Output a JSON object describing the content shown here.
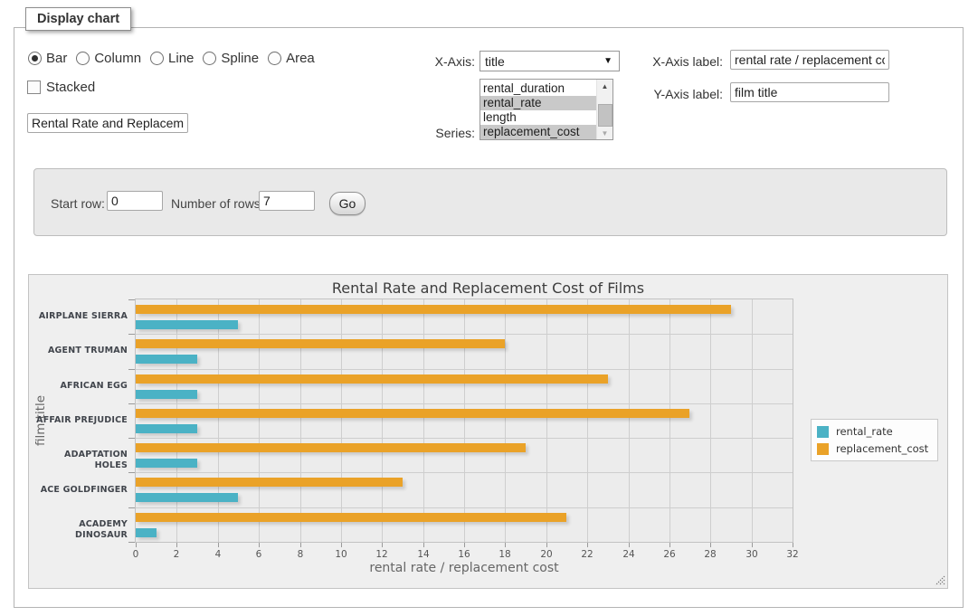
{
  "panel": {
    "title": "Display chart"
  },
  "chart_type": {
    "options": [
      {
        "label": "Bar",
        "selected": true
      },
      {
        "label": "Column",
        "selected": false
      },
      {
        "label": "Line",
        "selected": false
      },
      {
        "label": "Spline",
        "selected": false
      },
      {
        "label": "Area",
        "selected": false
      }
    ]
  },
  "stacked": {
    "label": "Stacked",
    "checked": false
  },
  "chart_title_input": {
    "value": "Rental Rate and Replacement Cost of Films"
  },
  "x_axis_select": {
    "label": "X-Axis:",
    "value": "title"
  },
  "series_select": {
    "label": "Series:",
    "options": [
      {
        "label": "rental_duration",
        "selected": false
      },
      {
        "label": "rental_rate",
        "selected": true
      },
      {
        "label": "length",
        "selected": false
      },
      {
        "label": "replacement_cost",
        "selected": true
      }
    ]
  },
  "x_axis_label_input": {
    "label": "X-Axis label:",
    "value": "rental rate / replacement cost"
  },
  "y_axis_label_input": {
    "label": "Y-Axis label:",
    "value": "film title"
  },
  "rows_form": {
    "start_row_label": "Start row:",
    "start_row_value": "0",
    "number_of_rows_label": "Number of rows:",
    "number_of_rows_value": "7",
    "go_label": "Go"
  },
  "chart_data": {
    "type": "bar",
    "orientation": "horizontal",
    "title": "Rental Rate and Replacement Cost of Films",
    "categories": [
      "AIRPLANE SIERRA",
      "AGENT TRUMAN",
      "AFRICAN EGG",
      "AFFAIR PREJUDICE",
      "ADAPTATION HOLES",
      "ACE GOLDFINGER",
      "ACADEMY DINOSAUR"
    ],
    "series": [
      {
        "name": "rental_rate",
        "color": "#4bb2c5",
        "values": [
          4.99,
          2.99,
          2.99,
          2.99,
          2.99,
          4.99,
          0.99
        ]
      },
      {
        "name": "replacement_cost",
        "color": "#eaa228",
        "values": [
          28.99,
          17.99,
          22.99,
          26.99,
          18.99,
          12.99,
          20.99
        ]
      }
    ],
    "bar_order_top_to_bottom": [
      "replacement_cost",
      "rental_rate"
    ],
    "xlabel": "rental rate / replacement cost",
    "ylabel": "film title",
    "xlim": [
      0,
      32
    ],
    "xtick_step": 2,
    "grid": true,
    "legend_position": "right"
  }
}
